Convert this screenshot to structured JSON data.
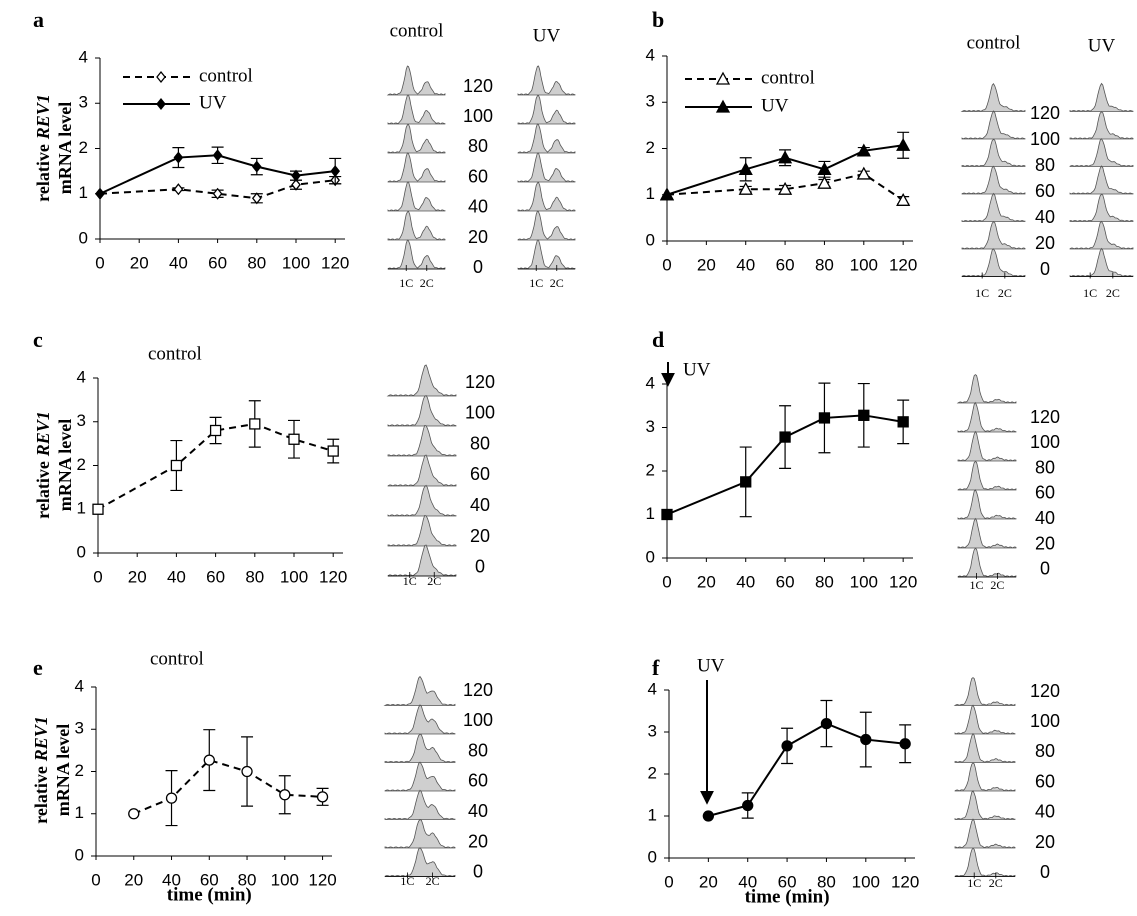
{
  "chart_data": [
    {
      "type": "line",
      "panel": "a",
      "ylabel": {
        "line1": "relative",
        "gene": "REV1",
        "line2": "mRNA level"
      },
      "x": [
        0,
        40,
        60,
        80,
        100,
        120
      ],
      "series": [
        {
          "name": "control",
          "color": "#000000",
          "linestyle": "dashed",
          "marker": "diamond",
          "filled": false,
          "values": [
            1,
            1.1,
            1.0,
            0.9,
            1.2,
            1.3
          ],
          "errors": [
            null,
            0.03,
            0.08,
            0.1,
            0.1,
            0.08
          ]
        },
        {
          "name": "UV",
          "color": "#000000",
          "linestyle": "solid",
          "marker": "diamond",
          "filled": true,
          "values": [
            1,
            1.8,
            1.85,
            1.6,
            1.4,
            1.5
          ],
          "errors": [
            null,
            0.22,
            0.18,
            0.18,
            0.1,
            0.28
          ]
        }
      ],
      "xlim": [
        0,
        125
      ],
      "xticks": [
        0,
        20,
        40,
        60,
        80,
        100,
        120
      ],
      "ylim": [
        0,
        4
      ],
      "yticks": [
        0,
        1,
        2,
        3,
        4
      ],
      "legend": "upper left",
      "facs": {
        "columns": [
          "control",
          "UV"
        ],
        "times": [
          120,
          100,
          80,
          60,
          40,
          20,
          0
        ],
        "ploidy": [
          "1C",
          "2C"
        ]
      }
    },
    {
      "type": "line",
      "panel": "b",
      "x": [
        0,
        40,
        60,
        80,
        100,
        120
      ],
      "series": [
        {
          "name": "control",
          "color": "#000000",
          "linestyle": "dashed",
          "marker": "triangle",
          "filled": false,
          "values": [
            1,
            1.12,
            1.12,
            1.25,
            1.45,
            0.88
          ],
          "errors": [
            null,
            0.06,
            0.08,
            0.08,
            0.06,
            0.08
          ]
        },
        {
          "name": "UV",
          "color": "#000000",
          "linestyle": "solid",
          "marker": "triangle",
          "filled": true,
          "values": [
            1,
            1.55,
            1.8,
            1.55,
            1.95,
            2.07
          ],
          "errors": [
            null,
            0.25,
            0.17,
            0.17,
            0.07,
            0.28
          ]
        }
      ],
      "xlim": [
        0,
        125
      ],
      "xticks": [
        0,
        20,
        40,
        60,
        80,
        100,
        120
      ],
      "ylim": [
        0,
        4
      ],
      "yticks": [
        0,
        1,
        2,
        3,
        4
      ],
      "legend": "upper left",
      "facs": {
        "columns": [
          "control",
          "UV"
        ],
        "times": [
          120,
          100,
          80,
          60,
          40,
          20,
          0
        ],
        "ploidy": [
          "1C",
          "2C"
        ]
      }
    },
    {
      "type": "line",
      "panel": "c",
      "annotation": "control",
      "ylabel": {
        "line1": "relative",
        "gene": "REV1",
        "line2": "mRNA level"
      },
      "x": [
        0,
        40,
        60,
        80,
        100,
        120
      ],
      "series": [
        {
          "name": "control",
          "color": "#000000",
          "linestyle": "dashed",
          "marker": "square",
          "filled": false,
          "values": [
            1,
            2.0,
            2.8,
            2.95,
            2.6,
            2.33
          ],
          "errors": [
            null,
            0.57,
            0.3,
            0.53,
            0.43,
            0.27
          ]
        }
      ],
      "xlim": [
        0,
        125
      ],
      "xticks": [
        0,
        20,
        40,
        60,
        80,
        100,
        120
      ],
      "ylim": [
        0,
        4
      ],
      "yticks": [
        0,
        1,
        2,
        3,
        4
      ],
      "facs": {
        "times": [
          120,
          100,
          80,
          60,
          40,
          20,
          0
        ],
        "ploidy": [
          "1C",
          "2C"
        ]
      }
    },
    {
      "type": "line",
      "panel": "d",
      "annotation": "UV",
      "x": [
        0,
        40,
        60,
        80,
        100,
        120
      ],
      "series": [
        {
          "name": "UV",
          "color": "#000000",
          "linestyle": "solid",
          "marker": "square",
          "filled": true,
          "values": [
            1,
            1.75,
            2.78,
            3.22,
            3.28,
            3.13
          ],
          "errors": [
            null,
            0.8,
            0.72,
            0.8,
            0.73,
            0.5
          ]
        }
      ],
      "xlim": [
        0,
        125
      ],
      "xticks": [
        0,
        20,
        40,
        60,
        80,
        100,
        120
      ],
      "ylim": [
        0,
        4
      ],
      "yticks": [
        0,
        1,
        2,
        3,
        4
      ],
      "facs": {
        "times": [
          120,
          100,
          80,
          60,
          40,
          20,
          0
        ],
        "ploidy": [
          "1C",
          "2C"
        ]
      }
    },
    {
      "type": "line",
      "panel": "e",
      "annotation": "control",
      "xlabel": "time (min)",
      "ylabel": {
        "line1": "relative",
        "gene": "REV1",
        "line2": "mRNA level"
      },
      "x": [
        20,
        40,
        60,
        80,
        100,
        120
      ],
      "series": [
        {
          "name": "control",
          "color": "#000000",
          "linestyle": "dashed",
          "marker": "circle",
          "filled": false,
          "values": [
            1,
            1.37,
            2.27,
            2.0,
            1.45,
            1.4
          ],
          "errors": [
            null,
            0.65,
            0.72,
            0.82,
            0.45,
            0.2
          ]
        }
      ],
      "xlim": [
        0,
        125
      ],
      "xticks": [
        0,
        20,
        40,
        60,
        80,
        100,
        120
      ],
      "ylim": [
        0,
        4
      ],
      "yticks": [
        0,
        1,
        2,
        3,
        4
      ],
      "facs": {
        "times": [
          120,
          100,
          80,
          60,
          40,
          20,
          0
        ],
        "ploidy": [
          "1C",
          "2C"
        ]
      }
    },
    {
      "type": "line",
      "panel": "f",
      "annotation": "UV",
      "xlabel": "time (min)",
      "x": [
        20,
        40,
        60,
        80,
        100,
        120
      ],
      "series": [
        {
          "name": "UV",
          "color": "#000000",
          "linestyle": "solid",
          "marker": "circle",
          "filled": true,
          "values": [
            1,
            1.25,
            2.67,
            3.2,
            2.82,
            2.72
          ],
          "errors": [
            null,
            0.3,
            0.42,
            0.55,
            0.65,
            0.45
          ]
        }
      ],
      "xlim": [
        0,
        125
      ],
      "xticks": [
        0,
        20,
        40,
        60,
        80,
        100,
        120
      ],
      "ylim": [
        0,
        4
      ],
      "yticks": [
        0,
        1,
        2,
        3,
        4
      ],
      "facs": {
        "times": [
          120,
          100,
          80,
          60,
          40,
          20,
          0
        ],
        "ploidy": [
          "1C",
          "2C"
        ]
      }
    }
  ]
}
